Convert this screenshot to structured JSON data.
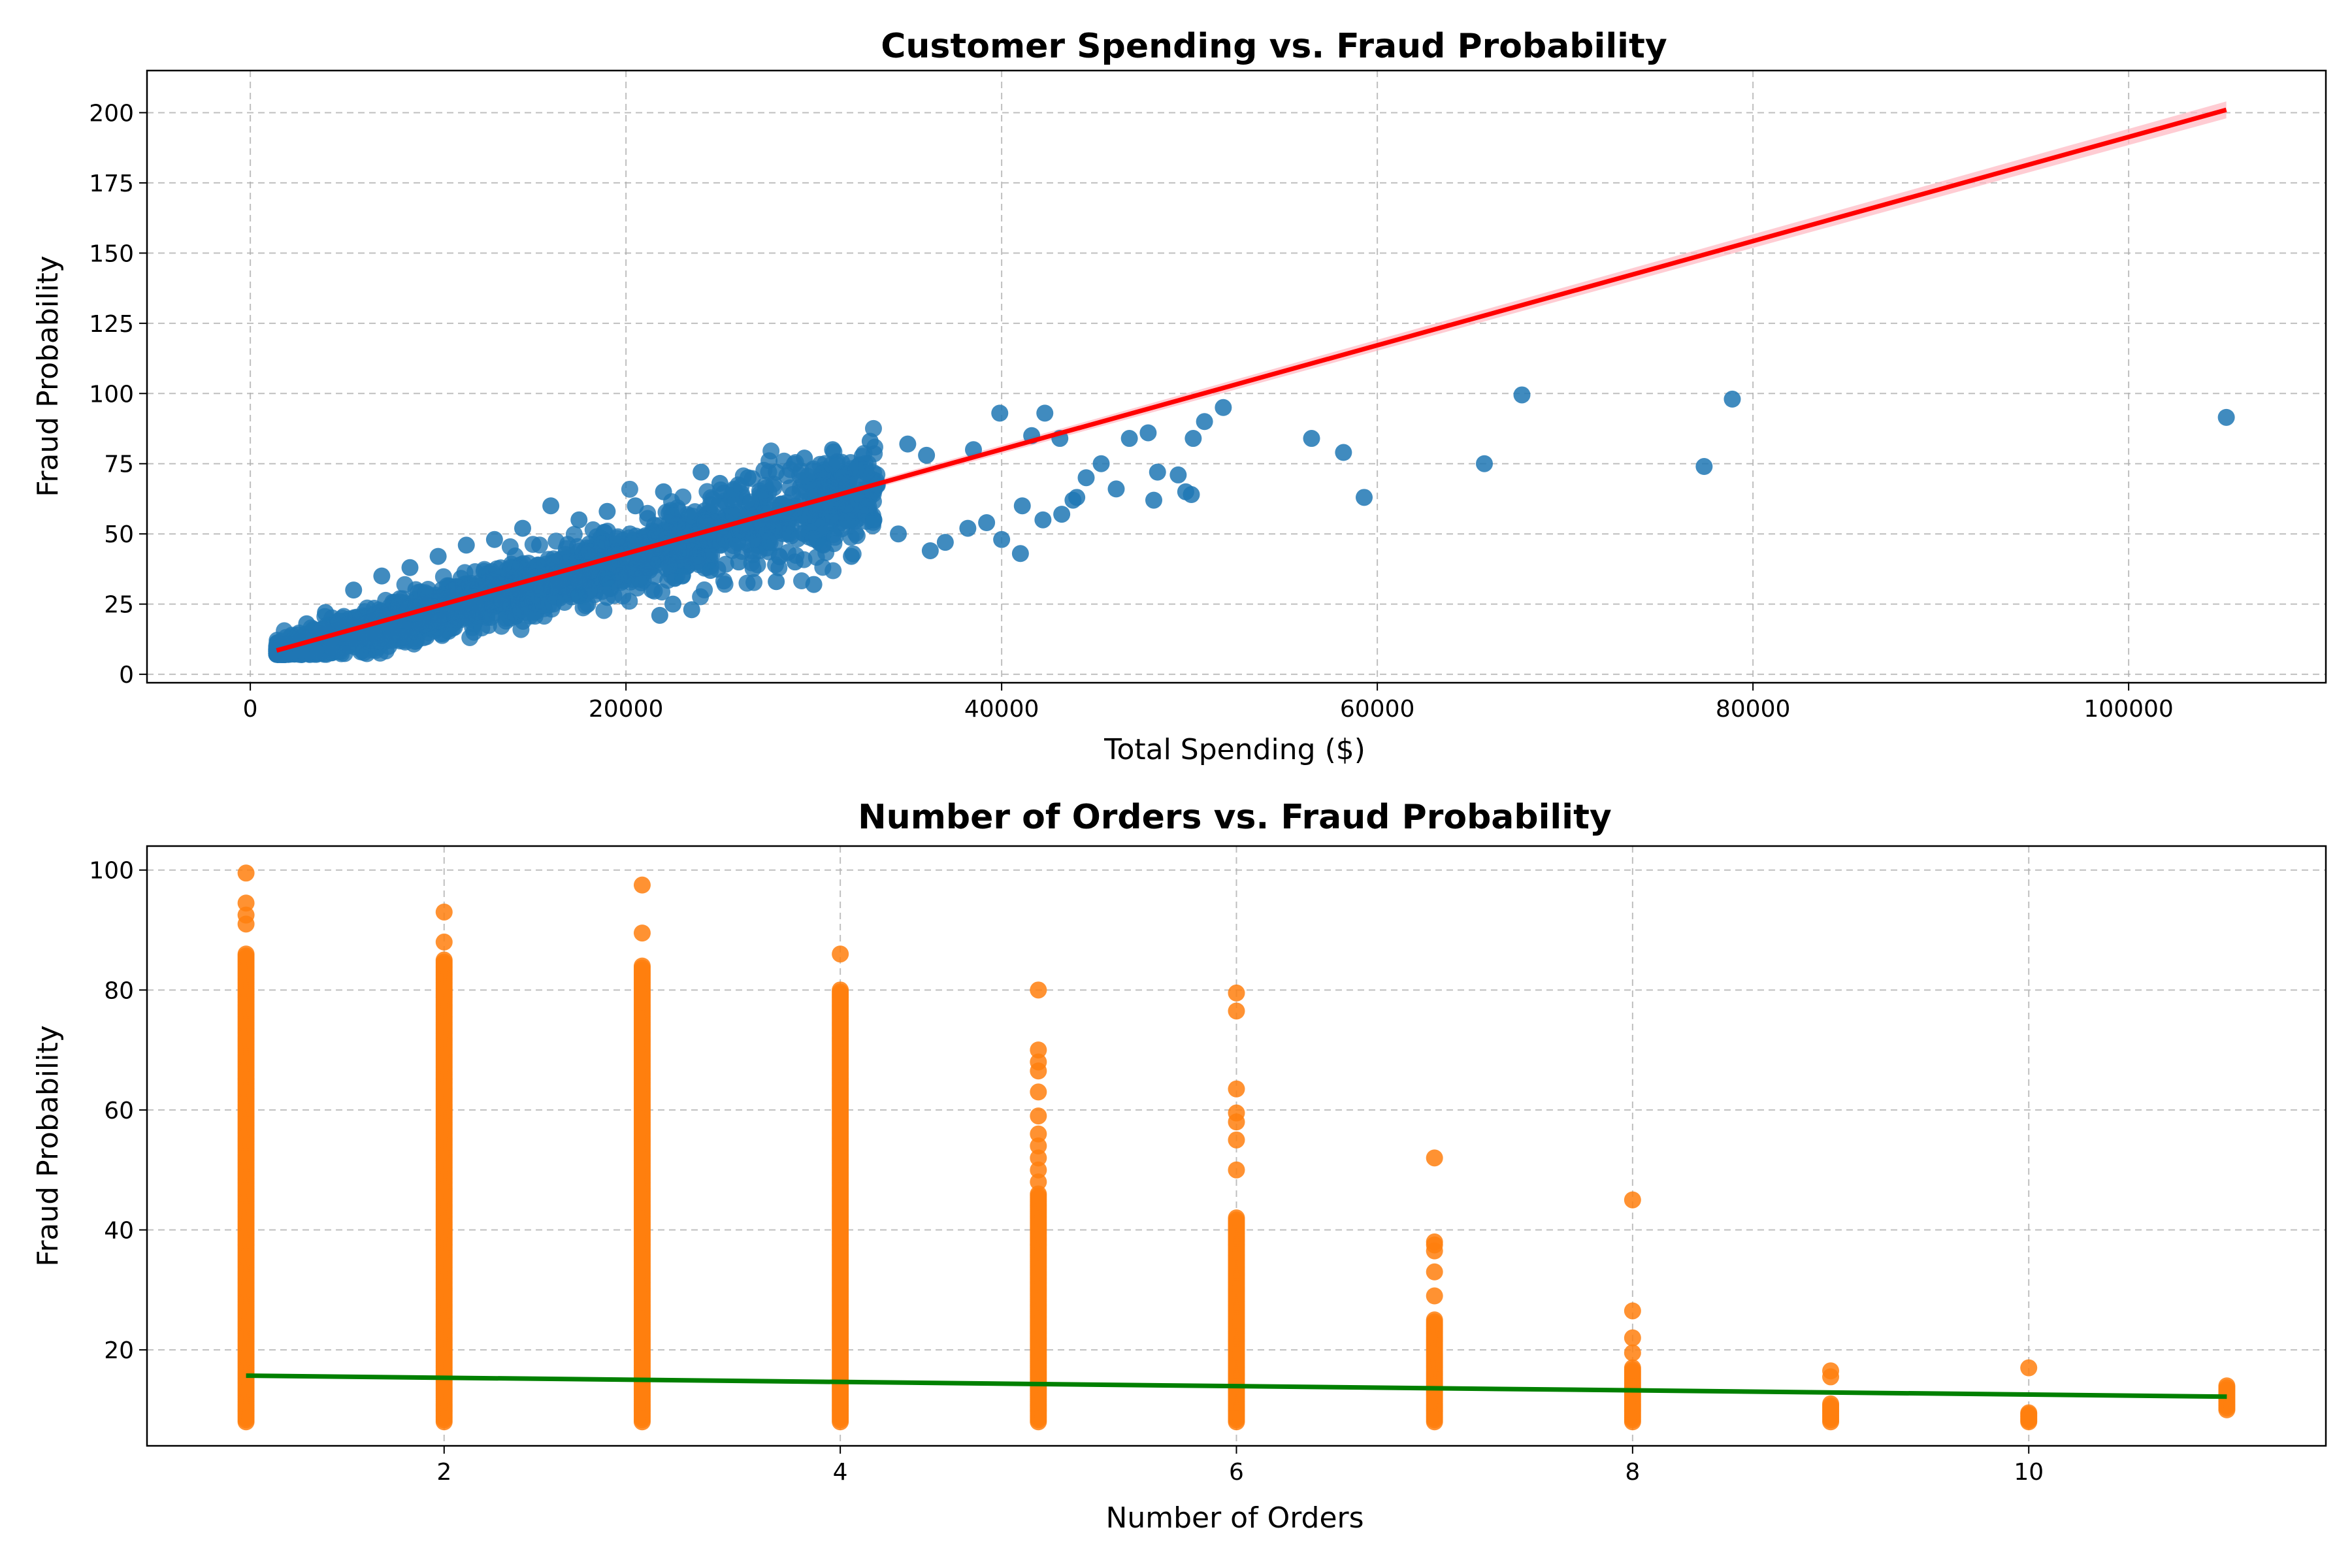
{
  "chart_data": [
    {
      "type": "scatter",
      "title": "Customer Spending vs. Fraud Probability",
      "xlabel": "Total Spending ($)",
      "ylabel": "Fraud Probability",
      "xlim": [
        -5500,
        110500
      ],
      "ylim": [
        -3,
        215
      ],
      "xticks": [
        0,
        20000,
        40000,
        60000,
        80000,
        100000
      ],
      "yticks": [
        0,
        25,
        50,
        75,
        100,
        125,
        150,
        175,
        200
      ],
      "grid": true,
      "colors": {
        "points": "#1f77b4",
        "trend": "#ff0000",
        "band": "#ffb6c1"
      },
      "points": [
        [
          56500,
          84
        ],
        [
          58200,
          79
        ],
        [
          59300,
          63
        ],
        [
          65700,
          75
        ],
        [
          67700,
          99.5
        ],
        [
          77400,
          74
        ],
        [
          78900,
          98
        ],
        [
          105200,
          91.5
        ],
        [
          39900,
          93
        ],
        [
          42300,
          93
        ],
        [
          41600,
          85
        ],
        [
          43100,
          84
        ],
        [
          44500,
          70
        ],
        [
          45300,
          75
        ],
        [
          46100,
          66
        ],
        [
          46800,
          84
        ],
        [
          47800,
          86
        ],
        [
          48100,
          62
        ],
        [
          48300,
          72
        ],
        [
          49400,
          71
        ],
        [
          49800,
          65
        ],
        [
          50100,
          64
        ],
        [
          50200,
          84
        ],
        [
          50800,
          90
        ],
        [
          51800,
          95
        ],
        [
          43800,
          62
        ],
        [
          41100,
          60
        ],
        [
          42200,
          55
        ],
        [
          43200,
          57
        ],
        [
          44000,
          63
        ],
        [
          39200,
          54
        ],
        [
          40000,
          48
        ],
        [
          41000,
          43
        ],
        [
          38200,
          52
        ],
        [
          37000,
          47
        ],
        [
          36200,
          44
        ],
        [
          34500,
          50
        ],
        [
          33200,
          55
        ],
        [
          32000,
          42
        ],
        [
          30500,
          46
        ],
        [
          29000,
          40
        ],
        [
          27500,
          45
        ],
        [
          26000,
          40
        ],
        [
          24500,
          37
        ],
        [
          23000,
          35
        ],
        [
          28000,
          33
        ],
        [
          30000,
          32
        ],
        [
          22500,
          25
        ],
        [
          21800,
          21
        ],
        [
          23500,
          23
        ],
        [
          19000,
          34
        ],
        [
          17500,
          28
        ],
        [
          36000,
          78
        ],
        [
          38500,
          80
        ],
        [
          35000,
          82
        ],
        [
          33000,
          83
        ],
        [
          31000,
          80
        ],
        [
          29500,
          77
        ],
        [
          28000,
          72
        ],
        [
          26500,
          70
        ],
        [
          25000,
          68
        ],
        [
          24000,
          72
        ],
        [
          22000,
          65
        ],
        [
          20500,
          60
        ],
        [
          19000,
          58
        ],
        [
          17500,
          55
        ],
        [
          16000,
          60
        ],
        [
          14500,
          52
        ],
        [
          13000,
          48
        ],
        [
          11500,
          46
        ],
        [
          10000,
          42
        ],
        [
          8500,
          38
        ],
        [
          7000,
          35
        ],
        [
          5500,
          30
        ],
        [
          4000,
          22
        ],
        [
          3000,
          18
        ],
        [
          2500,
          14
        ],
        [
          2000,
          11
        ],
        [
          1600,
          9
        ],
        [
          1400,
          8
        ]
      ],
      "trend": {
        "x": [
          1400,
          105200
        ],
        "y": [
          8.5,
          201
        ]
      }
    },
    {
      "type": "scatter",
      "title": "Number of Orders vs. Fraud Probability",
      "xlabel": "Number of Orders",
      "ylabel": "Fraud Probability",
      "xlim": [
        0.5,
        11.5
      ],
      "ylim": [
        4,
        104
      ],
      "xticks": [
        2,
        4,
        6,
        8,
        10
      ],
      "yticks": [
        20,
        40,
        60,
        80,
        100
      ],
      "grid": true,
      "colors": {
        "points": "#ff7f0e",
        "trend": "#008000"
      },
      "columns": [
        {
          "x": 1,
          "range": [
            8,
            86
          ],
          "outliers": [
            91,
            92.5,
            94.5,
            99.5
          ]
        },
        {
          "x": 2,
          "range": [
            8,
            85
          ],
          "outliers": [
            88,
            93
          ]
        },
        {
          "x": 3,
          "range": [
            8,
            84
          ],
          "outliers": [
            89.5,
            97.5
          ]
        },
        {
          "x": 4,
          "range": [
            8,
            80
          ],
          "outliers": [
            86
          ]
        },
        {
          "x": 5,
          "range": [
            8,
            46
          ],
          "outliers": [
            48,
            50,
            52,
            54,
            56,
            59,
            63,
            66.5,
            68,
            70,
            80
          ]
        },
        {
          "x": 6,
          "range": [
            8,
            42
          ],
          "outliers": [
            50,
            55,
            58,
            59.5,
            63.5,
            76.5,
            79.5
          ]
        },
        {
          "x": 7,
          "range": [
            8,
            25
          ],
          "outliers": [
            29,
            33,
            36.5,
            37.5,
            38,
            52
          ]
        },
        {
          "x": 8,
          "range": [
            8,
            17
          ],
          "outliers": [
            19.5,
            22,
            26.5,
            45
          ]
        },
        {
          "x": 9,
          "range": [
            8,
            11
          ],
          "outliers": [
            15.5,
            16.5
          ]
        },
        {
          "x": 10,
          "range": [
            8,
            9.5
          ],
          "outliers": [
            17
          ]
        },
        {
          "x": 11,
          "range": [
            10,
            14
          ],
          "outliers": []
        }
      ],
      "trend": {
        "x": [
          1,
          11
        ],
        "y": [
          15.7,
          12.2
        ]
      }
    }
  ]
}
